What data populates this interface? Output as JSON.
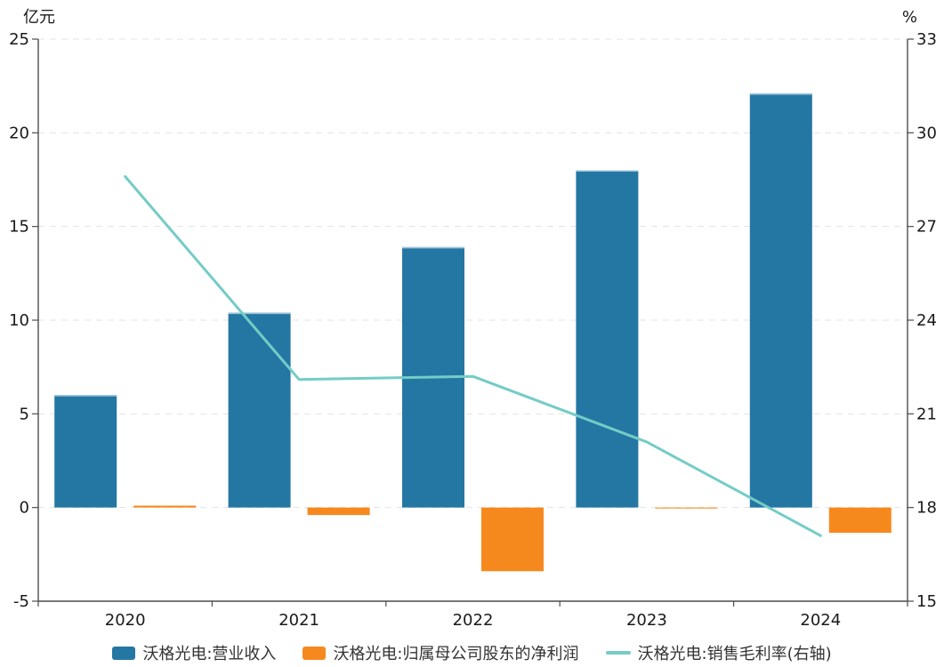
{
  "chart_data": {
    "type": "bar",
    "title": "",
    "categories": [
      "2020",
      "2021",
      "2022",
      "2023",
      "2024"
    ],
    "series": [
      {
        "name": "沃格光电:营业收入",
        "type": "bar",
        "axis": "left",
        "color": "#2477a3",
        "highlight": "#9ec5d8",
        "values": [
          6.0,
          10.4,
          13.9,
          18.0,
          22.1
        ]
      },
      {
        "name": "沃格光电:归属母公司股东的净利润",
        "type": "bar",
        "axis": "left",
        "color": "#f6891e",
        "highlight": "",
        "values": [
          0.1,
          -0.4,
          -3.4,
          -0.05,
          -1.35
        ]
      },
      {
        "name": "沃格光电:销售毛利率(右轴)",
        "type": "line",
        "axis": "right",
        "color": "#74ccc6",
        "highlight": "",
        "values": [
          28.6,
          22.1,
          22.2,
          20.1,
          17.1
        ]
      }
    ],
    "left_axis": {
      "title": "亿元",
      "min": -5,
      "max": 25,
      "ticks": [
        25,
        20,
        15,
        10,
        5,
        0,
        -5
      ]
    },
    "right_axis": {
      "title": "%",
      "min": 15,
      "max": 33,
      "ticks": [
        33,
        30,
        27,
        24,
        21,
        18,
        15
      ]
    },
    "x_axis": {
      "tick_labels": [
        "2020",
        "2021",
        "2022",
        "2023",
        "2024"
      ]
    },
    "grid": true,
    "legend_position": "bottom",
    "colors": {
      "grid": "#e3e3e3",
      "axis": "#4d4d4d",
      "text": "#1a1a1a"
    }
  },
  "legend": {
    "items": [
      {
        "label": "沃格光电:营业收入",
        "marker": "square",
        "color": "#2477a3"
      },
      {
        "label": "沃格光电:归属母公司股东的净利润",
        "marker": "square",
        "color": "#f6891e"
      },
      {
        "label": "沃格光电:销售毛利率(右轴)",
        "marker": "line",
        "color": "#74ccc6"
      }
    ]
  }
}
